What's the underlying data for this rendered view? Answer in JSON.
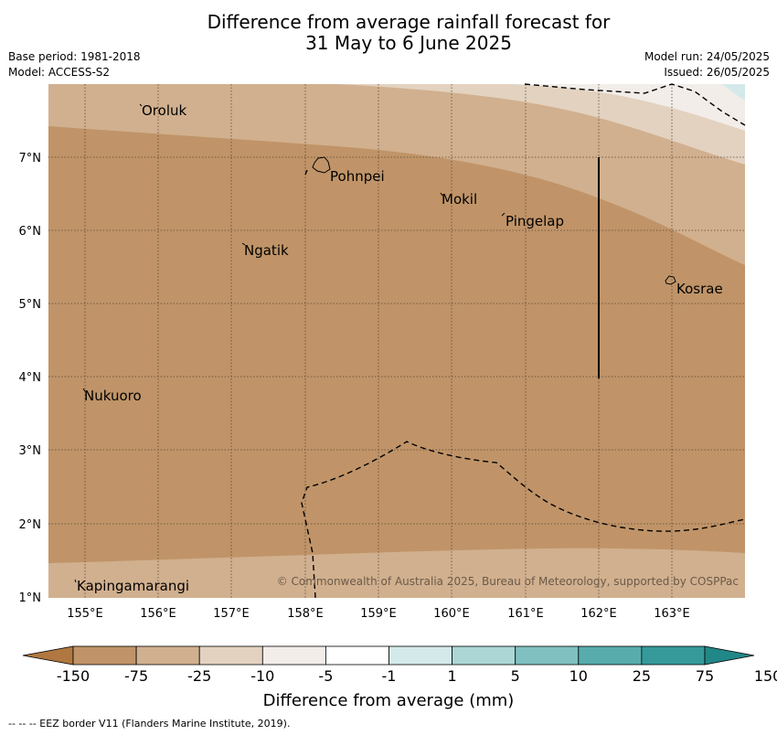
{
  "header": {
    "title_line1": "Difference from average rainfall forecast for",
    "title_line2": "31 May to 6 June 2025",
    "base_period": "Base period: 1981-2018",
    "model": "Model: ACCESS-S2",
    "model_run": "Model run: 24/05/2025",
    "issued": "Issued: 26/05/2025"
  },
  "map": {
    "lat_labels": [
      "7°N",
      "6°N",
      "5°N",
      "4°N",
      "3°N",
      "2°N",
      "1°N"
    ],
    "lon_labels": [
      "155°E",
      "156°E",
      "157°E",
      "158°E",
      "159°E",
      "160°E",
      "161°E",
      "162°E",
      "163°E"
    ],
    "places": [
      "Oroluk",
      "Pohnpei",
      "Mokil",
      "Pingelap",
      "Ngatik",
      "Kosrae",
      "Nukuoro",
      "Kapingamarangi"
    ],
    "copyright": "© Commonwealth of Australia 2025, Bureau of Meteorology, supported by COSPPac"
  },
  "legend": {
    "ticks": [
      "-150",
      "-75",
      "-25",
      "-10",
      "-5",
      "-1",
      "1",
      "5",
      "10",
      "25",
      "75",
      "150"
    ],
    "colors": [
      "#b07840",
      "#c09468",
      "#d1b08f",
      "#e3d2c0",
      "#f2ede8",
      "#ffffff",
      "#d4eaea",
      "#acd6d6",
      "#80c0c0",
      "#58acac",
      "#369a9a",
      "#228787"
    ],
    "label": "Difference from average (mm)"
  },
  "footnote": "-- -- -- EEZ border V11 (Flanders Marine Institute, 2019).",
  "colors": {
    "anomaly_-25_to_-75": "#c09468",
    "anomaly_-10_to_-25": "#d1b08f",
    "anomaly_-5_to_-10": "#e3d2c0",
    "anomaly_-1_to_-5": "#f2ede8",
    "anomaly_1_to_5": "#d4eaea"
  }
}
